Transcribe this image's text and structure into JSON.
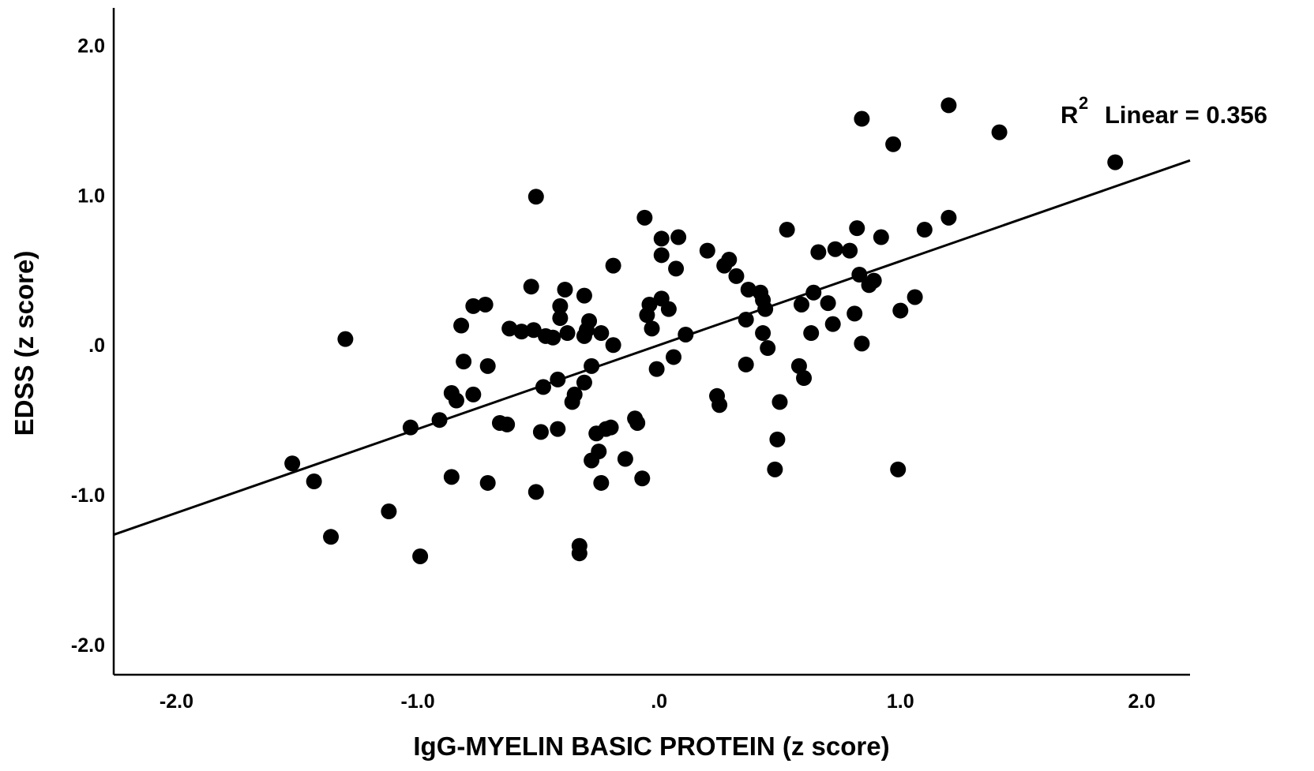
{
  "chart_data": {
    "type": "scatter",
    "xlabel": "IgG-MYELIN BASIC PROTEIN (z score)",
    "ylabel": "EDSS (z score)",
    "xlim": [
      -2.26,
      2.2
    ],
    "ylim": [
      -2.2,
      2.25
    ],
    "x_ticks": [
      -2.0,
      -1.0,
      0.0,
      1.0,
      2.0
    ],
    "x_tick_labels": [
      "-2.0",
      "-1.0",
      ".0",
      "1.0",
      "2.0"
    ],
    "y_ticks": [
      -2.0,
      -1.0,
      0.0,
      1.0,
      2.0
    ],
    "y_tick_labels": [
      "-2.0",
      "-1.0",
      ".0",
      "1.0",
      "2.0"
    ],
    "annotation": {
      "r_label": "R",
      "r_sup": "2",
      "text": "Linear = 0.356"
    },
    "fit_line": {
      "intercept": 0.0,
      "slope": 0.56
    },
    "grid": false,
    "legend": "none",
    "colors": {
      "points": "#000000",
      "line": "#000000",
      "background": "#ffffff"
    },
    "points": [
      [
        -1.52,
        -0.79
      ],
      [
        -1.43,
        -0.91
      ],
      [
        -1.36,
        -1.28
      ],
      [
        -1.3,
        0.04
      ],
      [
        -1.12,
        -1.11
      ],
      [
        -1.03,
        -0.55
      ],
      [
        -0.99,
        -1.41
      ],
      [
        -0.91,
        -0.5
      ],
      [
        -0.86,
        -0.32
      ],
      [
        -0.86,
        -0.88
      ],
      [
        -0.84,
        -0.37
      ],
      [
        -0.82,
        0.13
      ],
      [
        -0.81,
        -0.11
      ],
      [
        -0.77,
        -0.33
      ],
      [
        -0.77,
        0.26
      ],
      [
        -0.72,
        0.27
      ],
      [
        -0.71,
        -0.14
      ],
      [
        -0.71,
        -0.92
      ],
      [
        -0.66,
        -0.52
      ],
      [
        -0.63,
        -0.53
      ],
      [
        -0.62,
        0.11
      ],
      [
        -0.57,
        0.09
      ],
      [
        -0.53,
        0.39
      ],
      [
        -0.52,
        0.1
      ],
      [
        -0.51,
        0.99
      ],
      [
        -0.51,
        -0.98
      ],
      [
        -0.49,
        -0.58
      ],
      [
        -0.48,
        -0.28
      ],
      [
        -0.47,
        0.06
      ],
      [
        -0.44,
        0.05
      ],
      [
        -0.42,
        -0.23
      ],
      [
        -0.42,
        -0.56
      ],
      [
        -0.41,
        0.26
      ],
      [
        -0.41,
        0.18
      ],
      [
        -0.39,
        0.37
      ],
      [
        -0.38,
        0.08
      ],
      [
        -0.36,
        -0.38
      ],
      [
        -0.35,
        -0.33
      ],
      [
        -0.33,
        -1.34
      ],
      [
        -0.33,
        -1.39
      ],
      [
        -0.31,
        0.33
      ],
      [
        -0.31,
        0.06
      ],
      [
        -0.31,
        -0.25
      ],
      [
        -0.3,
        0.1
      ],
      [
        -0.29,
        0.16
      ],
      [
        -0.28,
        -0.14
      ],
      [
        -0.28,
        -0.77
      ],
      [
        -0.26,
        -0.59
      ],
      [
        -0.25,
        -0.71
      ],
      [
        -0.24,
        0.08
      ],
      [
        -0.24,
        -0.92
      ],
      [
        -0.22,
        -0.56
      ],
      [
        -0.2,
        -0.55
      ],
      [
        -0.19,
        0.0
      ],
      [
        -0.19,
        0.53
      ],
      [
        -0.14,
        -0.76
      ],
      [
        -0.1,
        -0.49
      ],
      [
        -0.09,
        -0.52
      ],
      [
        -0.07,
        -0.89
      ],
      [
        -0.06,
        0.85
      ],
      [
        -0.05,
        0.2
      ],
      [
        -0.04,
        0.27
      ],
      [
        -0.03,
        0.11
      ],
      [
        -0.01,
        -0.16
      ],
      [
        0.01,
        0.31
      ],
      [
        0.01,
        0.71
      ],
      [
        0.01,
        0.6
      ],
      [
        0.04,
        0.24
      ],
      [
        0.06,
        -0.08
      ],
      [
        0.07,
        0.51
      ],
      [
        0.08,
        0.72
      ],
      [
        0.11,
        0.07
      ],
      [
        0.2,
        0.63
      ],
      [
        0.24,
        -0.34
      ],
      [
        0.25,
        -0.4
      ],
      [
        0.27,
        0.53
      ],
      [
        0.29,
        0.57
      ],
      [
        0.32,
        0.46
      ],
      [
        0.36,
        0.17
      ],
      [
        0.36,
        -0.13
      ],
      [
        0.37,
        0.37
      ],
      [
        0.42,
        0.35
      ],
      [
        0.43,
        0.08
      ],
      [
        0.43,
        0.3
      ],
      [
        0.44,
        0.24
      ],
      [
        0.45,
        -0.02
      ],
      [
        0.48,
        -0.83
      ],
      [
        0.49,
        -0.63
      ],
      [
        0.5,
        -0.38
      ],
      [
        0.53,
        0.77
      ],
      [
        0.58,
        -0.14
      ],
      [
        0.59,
        0.27
      ],
      [
        0.6,
        -0.22
      ],
      [
        0.63,
        0.08
      ],
      [
        0.64,
        0.35
      ],
      [
        0.66,
        0.62
      ],
      [
        0.7,
        0.28
      ],
      [
        0.72,
        0.14
      ],
      [
        0.73,
        0.64
      ],
      [
        0.79,
        0.63
      ],
      [
        0.81,
        0.21
      ],
      [
        0.82,
        0.78
      ],
      [
        0.83,
        0.47
      ],
      [
        0.84,
        1.51
      ],
      [
        0.84,
        0.01
      ],
      [
        0.87,
        0.4
      ],
      [
        0.89,
        0.43
      ],
      [
        0.92,
        0.72
      ],
      [
        0.97,
        1.34
      ],
      [
        0.99,
        -0.83
      ],
      [
        1.0,
        0.23
      ],
      [
        1.06,
        0.32
      ],
      [
        1.1,
        0.77
      ],
      [
        1.2,
        1.6
      ],
      [
        1.2,
        0.85
      ],
      [
        1.41,
        1.42
      ],
      [
        1.89,
        1.22
      ]
    ]
  }
}
